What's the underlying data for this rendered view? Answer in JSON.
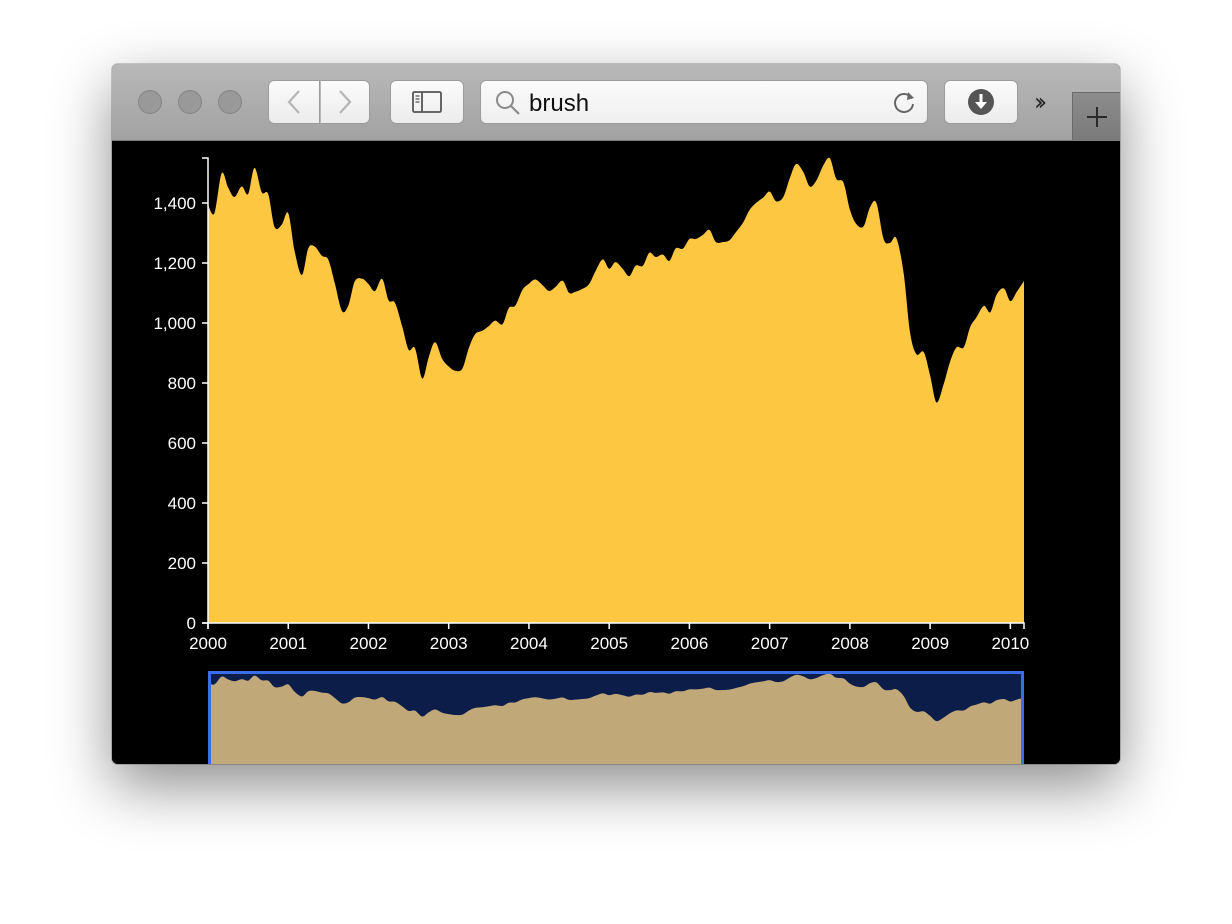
{
  "browser": {
    "address_text": "brush",
    "icons": [
      "chevron-left-icon",
      "chevron-right-icon",
      "sidebar-icon",
      "search-icon",
      "reload-icon",
      "download-icon",
      "more-icon",
      "plus-icon"
    ],
    "more_label": "››"
  },
  "colors": {
    "focus_fill": "#fdc742",
    "context_fill": "#c0a878",
    "context_bg": "#0d1d4a",
    "brush_stroke": "#3a6ee6",
    "background": "#000000",
    "axis": "#ffffff"
  },
  "chart_data": {
    "type": "area",
    "title": "",
    "xlabel": "",
    "ylabel": "",
    "x_ticks": [
      "2000",
      "2001",
      "2002",
      "2003",
      "2004",
      "2005",
      "2006",
      "2007",
      "2008",
      "2009",
      "2010"
    ],
    "y_ticks": [
      "0",
      "200",
      "400",
      "600",
      "800",
      "1,000",
      "1,200",
      "1,400"
    ],
    "xlim": [
      2000.0,
      2010.17
    ],
    "ylim": [
      0,
      1550
    ],
    "brush_selection": [
      2000.0,
      2010.17
    ],
    "series": [
      {
        "x": [
          2000.0,
          2000.08,
          2000.17,
          2000.25,
          2000.33,
          2000.42,
          2000.5,
          2000.58,
          2000.67,
          2000.75,
          2000.83,
          2000.92,
          2001.0,
          2001.08,
          2001.17,
          2001.25,
          2001.33,
          2001.42,
          2001.5,
          2001.58,
          2001.67,
          2001.75,
          2001.83,
          2001.92,
          2002.0,
          2002.08,
          2002.17,
          2002.25,
          2002.33,
          2002.42,
          2002.5,
          2002.58,
          2002.67,
          2002.75,
          2002.83,
          2002.92,
          2003.0,
          2003.08,
          2003.17,
          2003.25,
          2003.33,
          2003.42,
          2003.5,
          2003.58,
          2003.67,
          2003.75,
          2003.83,
          2003.92,
          2004.0,
          2004.08,
          2004.17,
          2004.25,
          2004.33,
          2004.42,
          2004.5,
          2004.58,
          2004.67,
          2004.75,
          2004.83,
          2004.92,
          2005.0,
          2005.08,
          2005.17,
          2005.25,
          2005.33,
          2005.42,
          2005.5,
          2005.58,
          2005.67,
          2005.75,
          2005.83,
          2005.92,
          2006.0,
          2006.08,
          2006.17,
          2006.25,
          2006.33,
          2006.42,
          2006.5,
          2006.58,
          2006.67,
          2006.75,
          2006.83,
          2006.92,
          2007.0,
          2007.08,
          2007.17,
          2007.25,
          2007.33,
          2007.42,
          2007.5,
          2007.58,
          2007.67,
          2007.75,
          2007.83,
          2007.92,
          2008.0,
          2008.08,
          2008.17,
          2008.25,
          2008.33,
          2008.42,
          2008.5,
          2008.58,
          2008.67,
          2008.75,
          2008.83,
          2008.92,
          2009.0,
          2009.08,
          2009.17,
          2009.25,
          2009.33,
          2009.42,
          2009.5,
          2009.58,
          2009.67,
          2009.75,
          2009.83,
          2009.92,
          2010.0,
          2010.08,
          2010.17
        ],
        "values": [
          1394,
          1366,
          1499,
          1452,
          1420,
          1455,
          1430,
          1517,
          1436,
          1430,
          1320,
          1328,
          1366,
          1239,
          1160,
          1249,
          1255,
          1224,
          1211,
          1133,
          1040,
          1059,
          1139,
          1148,
          1130,
          1106,
          1147,
          1076,
          1067,
          989,
          911,
          916,
          815,
          885,
          936,
          880,
          855,
          841,
          848,
          916,
          963,
          974,
          990,
          1008,
          996,
          1050,
          1058,
          1111,
          1131,
          1145,
          1126,
          1107,
          1120,
          1141,
          1101,
          1104,
          1114,
          1130,
          1173,
          1212,
          1181,
          1203,
          1180,
          1156,
          1191,
          1191,
          1234,
          1220,
          1228,
          1207,
          1249,
          1248,
          1280,
          1280,
          1294,
          1310,
          1270,
          1270,
          1276,
          1303,
          1335,
          1377,
          1400,
          1418,
          1438,
          1406,
          1420,
          1482,
          1530,
          1503,
          1455,
          1474,
          1526,
          1549,
          1481,
          1468,
          1378,
          1330,
          1322,
          1385,
          1400,
          1280,
          1267,
          1282,
          1166,
          968,
          896,
          903,
          825,
          735,
          797,
          872,
          919,
          919,
          987,
          1020,
          1057,
          1036,
          1095,
          1115,
          1073,
          1104,
          1140
        ]
      }
    ]
  }
}
